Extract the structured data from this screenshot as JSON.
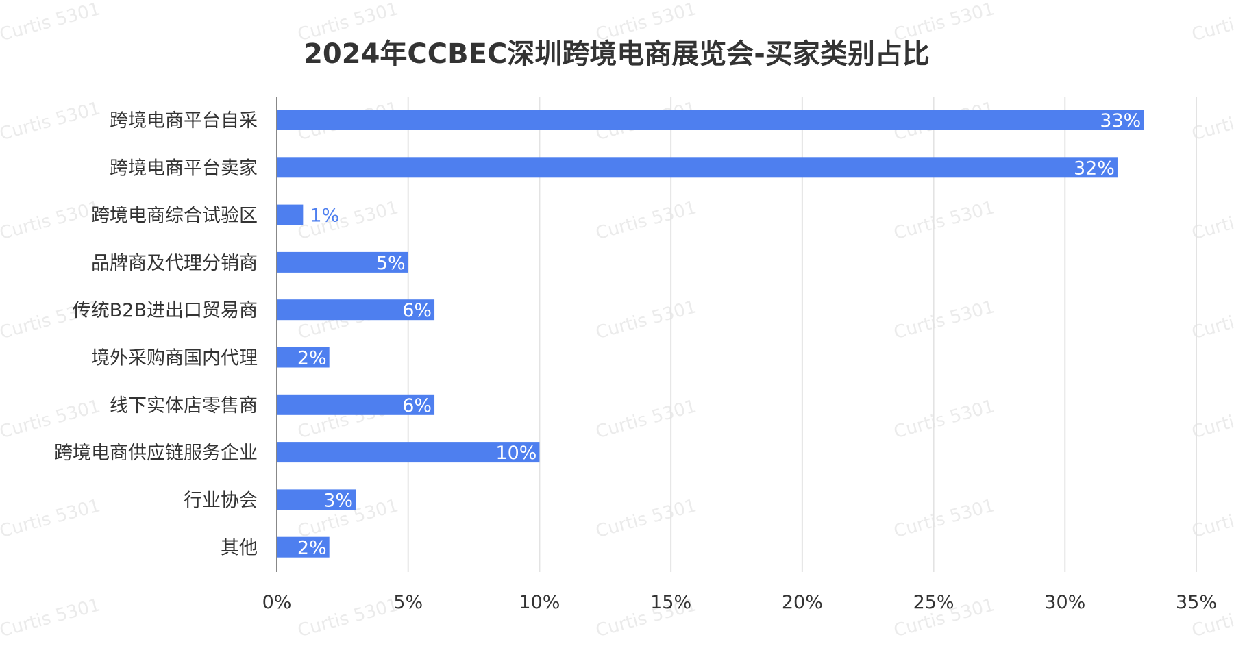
{
  "chart_data": {
    "type": "bar",
    "orientation": "horizontal",
    "title": "2024年CCBEC深圳跨境电商展览会-买家类别占比",
    "xlabel": "",
    "ylabel": "",
    "categories": [
      "跨境电商平台自采",
      "跨境电商平台卖家",
      "跨境电商综合试验区",
      "品牌商及代理分销商",
      "传统B2B进出口贸易商",
      "境外采购商国内代理",
      "线下实体店零售商",
      "跨境电商供应链服务企业",
      "行业协会",
      "其他"
    ],
    "values": [
      33,
      32,
      1,
      5,
      6,
      2,
      6,
      10,
      3,
      2
    ],
    "data_labels": [
      "33%",
      "32%",
      "1%",
      "5%",
      "6%",
      "2%",
      "6%",
      "10%",
      "3%",
      "2%"
    ],
    "xlim": [
      0,
      35
    ],
    "x_ticks": [
      0,
      5,
      10,
      15,
      20,
      25,
      30,
      35
    ],
    "x_tick_labels": [
      "0%",
      "5%",
      "10%",
      "15%",
      "20%",
      "25%",
      "30%",
      "35%"
    ],
    "grid": true,
    "legend": "none",
    "bar_color": "#4e7fef",
    "inside_label_color": "#ffffff",
    "outside_label_color": "#4e7fef"
  },
  "watermark": {
    "text": "Curtis 5301"
  }
}
